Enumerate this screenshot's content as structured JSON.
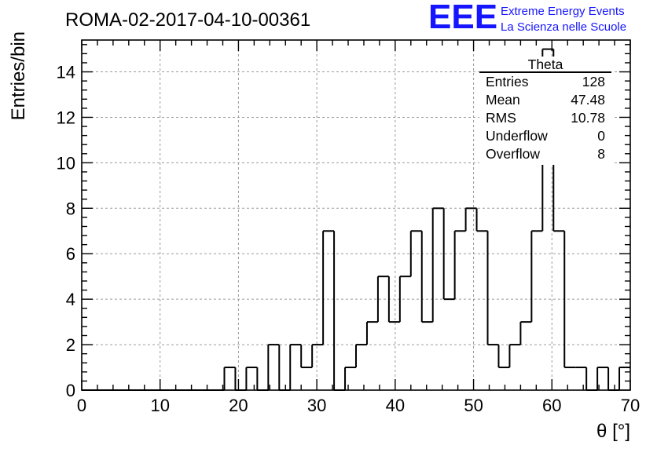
{
  "title": "ROMA-02-2017-04-10-00361",
  "brand": {
    "logo": "EEE",
    "line1": "Extreme Energy Events",
    "line2": "La Scienza nelle Scuole",
    "color": "#1515ff"
  },
  "stats_box": {
    "title": "Theta",
    "rows": [
      {
        "key": "Entries",
        "value": "128"
      },
      {
        "key": "Mean",
        "value": "47.48"
      },
      {
        "key": "RMS",
        "value": "10.78"
      },
      {
        "key": "Underflow",
        "value": "0"
      },
      {
        "key": "Overflow",
        "value": "8"
      }
    ]
  },
  "chart_data": {
    "type": "histogram",
    "title": "ROMA-02-2017-04-10-00361",
    "xlabel": "θ [°]",
    "ylabel": "Entries/bin",
    "xlim": [
      0,
      70
    ],
    "ylim": [
      0,
      15.4
    ],
    "bin_width": 1.4,
    "bin_edges_start": 0,
    "values": [
      0,
      0,
      0,
      0,
      0,
      0,
      0,
      0,
      0,
      0,
      0,
      0,
      0,
      1,
      0,
      1,
      0,
      2,
      0,
      2,
      1,
      2,
      7,
      0,
      1,
      2,
      3,
      5,
      3,
      5,
      7,
      3,
      8,
      4,
      7,
      8,
      7,
      2,
      1,
      2,
      3,
      7,
      15,
      7,
      1,
      1,
      0,
      1,
      0,
      1
    ],
    "x_ticks": [
      "0",
      "10",
      "20",
      "30",
      "40",
      "50",
      "60",
      "70"
    ],
    "y_ticks": [
      "0",
      "2",
      "4",
      "6",
      "8",
      "10",
      "12",
      "14"
    ],
    "grid": true,
    "line_color": "#000000"
  }
}
